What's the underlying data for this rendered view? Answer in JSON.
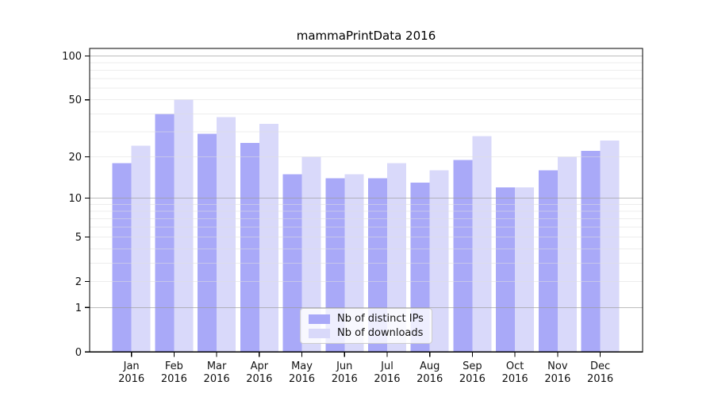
{
  "title": "mammaPrintData 2016",
  "chart_data": {
    "type": "bar",
    "title": "mammaPrintData 2016",
    "categories": [
      "Jan 2016",
      "Feb 2016",
      "Mar 2016",
      "Apr 2016",
      "May 2016",
      "Jun 2016",
      "Jul 2016",
      "Aug 2016",
      "Sep 2016",
      "Oct 2016",
      "Nov 2016",
      "Dec 2016"
    ],
    "series": [
      {
        "name": "Nb of distinct IPs",
        "color": "#a9a9f8",
        "values": [
          18,
          40,
          29,
          25,
          15,
          14,
          14,
          13,
          19,
          12,
          16,
          22
        ]
      },
      {
        "name": "Nb of downloads",
        "color": "#d9d9fa",
        "values": [
          24,
          50,
          38,
          34,
          20,
          15,
          18,
          16,
          28,
          12,
          20,
          26
        ]
      }
    ],
    "xlabel": "",
    "ylabel": "",
    "y_axis": {
      "scale": "log1p",
      "ticks": [
        0,
        1,
        2,
        5,
        10,
        20,
        50,
        100
      ],
      "major_gridlines": [
        1,
        10,
        100
      ],
      "minor_gridlines": [
        2,
        3,
        4,
        5,
        6,
        7,
        8,
        9,
        20,
        30,
        40,
        50,
        60,
        70,
        80,
        90
      ],
      "range_top": 112
    },
    "grid": "on",
    "legend": {
      "position": "bottom-center"
    },
    "style": {
      "axis_color": "#000000",
      "major_grid_color": "#9a9a9a",
      "minor_grid_color": "#dedede",
      "tick_text_color": "#111111"
    }
  }
}
